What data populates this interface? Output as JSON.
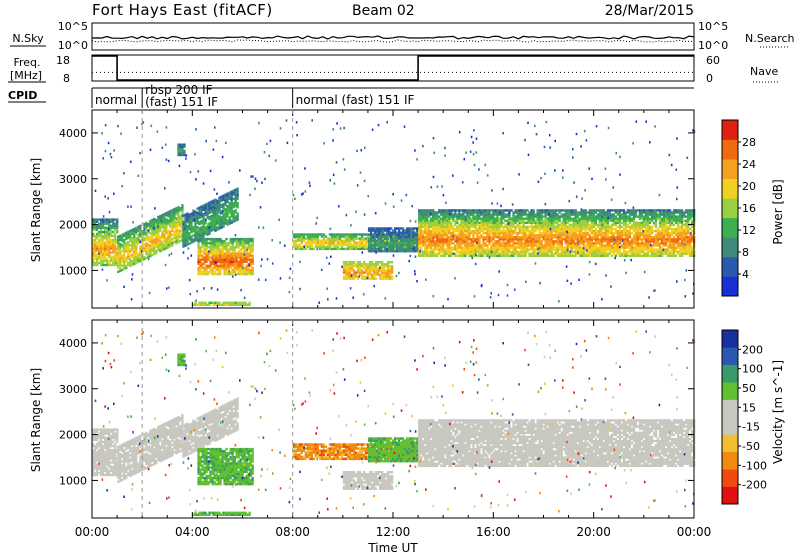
{
  "header": {
    "station": "Fort Hays East (fitACF)",
    "beam": "Beam 02",
    "date": "28/Mar/2015"
  },
  "noise_panel": {
    "left_label": "N.Sky",
    "right_label": "N.Search",
    "left_ticks": [
      "10^5",
      "10^0"
    ],
    "right_ticks": [
      "10^5",
      "10^0"
    ]
  },
  "freq_panel": {
    "left_label_1": "Freq.",
    "left_label_2": "[MHz]",
    "right_label": "Nave",
    "left_ticks": [
      "18",
      "8"
    ],
    "right_ticks": [
      "60",
      "0"
    ],
    "freq_steps": [
      {
        "t": 0,
        "v": 18
      },
      {
        "t": 1.0,
        "v": 8
      },
      {
        "t": 13.0,
        "v": 18
      },
      {
        "t": 24,
        "v": 18
      }
    ],
    "nave_level": 20
  },
  "cpid": {
    "label": "CPID",
    "segments": [
      {
        "start": 0.0,
        "end": 2.0,
        "line1": "normal",
        "line2": ""
      },
      {
        "start": 2.0,
        "end": 8.0,
        "line1": "rbsp 200 IF",
        "line2": "(fast) 151 IF"
      },
      {
        "start": 8.0,
        "end": 13.0,
        "line1": "normal (fast) 151 IF",
        "line2": ""
      }
    ]
  },
  "colors": {
    "power": [
      "#1a2fd6",
      "#2a5ab0",
      "#3f8a7a",
      "#3cb050",
      "#9ad040",
      "#f0d020",
      "#f5a020",
      "#f06a10",
      "#e02010"
    ],
    "velocity": [
      "#e01010",
      "#f04a10",
      "#f08a10",
      "#f0c030",
      "#c8c8c0",
      "#c8c8c0",
      "#60c030",
      "#3a9a6a",
      "#2a5ab0",
      "#1a2fa0"
    ],
    "ground": "#c8c8c0"
  },
  "chart_data": {
    "type": "heatmap",
    "x_range": [
      0,
      24
    ],
    "x_ticks": [
      "00:00",
      "04:00",
      "08:00",
      "12:00",
      "16:00",
      "20:00",
      "00:00"
    ],
    "xlabel": "Time UT",
    "ylabel": "Slant Range [km]",
    "ylim": [
      180,
      4500
    ],
    "y_ticks": [
      1000,
      2000,
      3000,
      4000
    ],
    "power_scale": {
      "label": "Power [dB]",
      "ticks": [
        "4",
        "8",
        "12",
        "16",
        "20",
        "24",
        "28"
      ],
      "range": [
        0,
        30
      ]
    },
    "velocity_scale": {
      "label": "Velocity [m s^-1]",
      "ticks": [
        "-200",
        "-100",
        "-50",
        "-15",
        "15",
        "50",
        "100",
        "200"
      ]
    },
    "regions": [
      {
        "t0": 0.0,
        "t1": 1.0,
        "r0": 1100,
        "r1": 2100,
        "power": [
          4,
          22
        ],
        "vel": "ground"
      },
      {
        "t0": 1.0,
        "t1": 3.6,
        "r0": 950,
        "r1": 1750,
        "power": [
          6,
          20
        ],
        "vel": "ground",
        "slope": 700
      },
      {
        "t0": 3.6,
        "t1": 5.8,
        "r0": 1500,
        "r1": 2200,
        "power": [
          4,
          12
        ],
        "vel": "ground",
        "slope": 600
      },
      {
        "t0": 4.2,
        "t1": 6.4,
        "r0": 900,
        "r1": 1700,
        "power": [
          6,
          26
        ],
        "vel": "green"
      },
      {
        "t0": 3.4,
        "t1": 3.7,
        "r0": 3500,
        "r1": 3750,
        "power": [
          4,
          10
        ],
        "vel": "green"
      },
      {
        "t0": 8.0,
        "t1": 13.0,
        "r0": 1450,
        "r1": 1800,
        "power": [
          6,
          20
        ],
        "vel": "orange"
      },
      {
        "t0": 10.0,
        "t1": 12.0,
        "r0": 800,
        "r1": 1200,
        "power": [
          12,
          22
        ],
        "vel": "ground"
      },
      {
        "t0": 11.0,
        "t1": 13.0,
        "r0": 1400,
        "r1": 1900,
        "power": [
          4,
          10
        ],
        "vel": "green"
      },
      {
        "t0": 13.0,
        "t1": 24.0,
        "r0": 1300,
        "r1": 2300,
        "power": [
          4,
          24
        ],
        "vel": "ground"
      },
      {
        "t0": 4.0,
        "t1": 6.3,
        "r0": 230,
        "r1": 290,
        "power": [
          10,
          20
        ],
        "vel": "green"
      }
    ]
  }
}
